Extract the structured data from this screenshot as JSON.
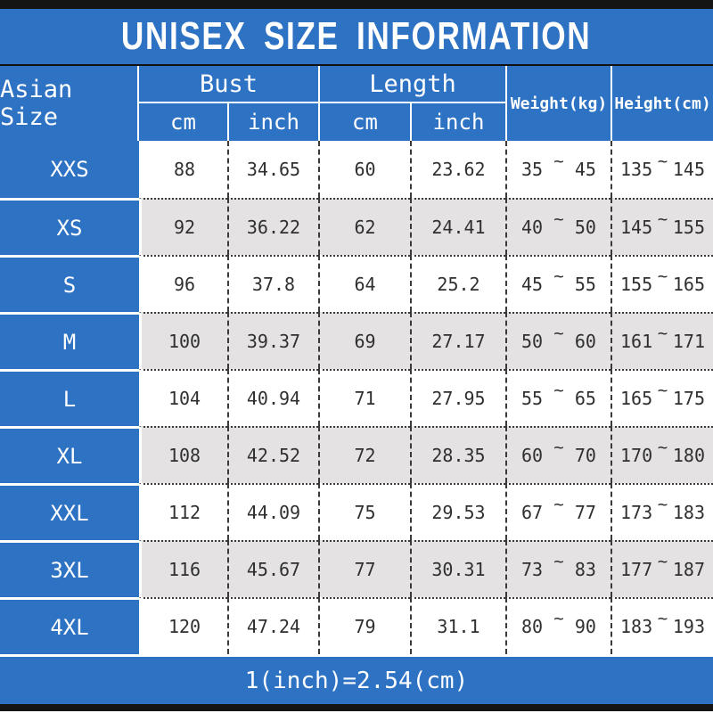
{
  "title": "UNISEX SIZE INFORMATION",
  "footer_note": "1(inch)=2.54(cm)",
  "colors": {
    "blue": "#2d72c3",
    "alt_row": "#e4e2e3",
    "bar": "#141414",
    "text": "#2f2f2f"
  },
  "table": {
    "corner_header": "Asian Size",
    "groups": [
      {
        "label": "Bust",
        "sub": [
          "cm",
          "inch"
        ]
      },
      {
        "label": "Length",
        "sub": [
          "cm",
          "inch"
        ]
      }
    ],
    "weight_header": "Weight(kg)",
    "height_header": "Height(cm)",
    "range_separator": "~",
    "rows": [
      {
        "size": "XXS",
        "bust_cm": "88",
        "bust_inch": "34.65",
        "length_cm": "60",
        "length_inch": "23.62",
        "weight_min": "35",
        "weight_max": "45",
        "height_min": "135",
        "height_max": "145"
      },
      {
        "size": "XS",
        "bust_cm": "92",
        "bust_inch": "36.22",
        "length_cm": "62",
        "length_inch": "24.41",
        "weight_min": "40",
        "weight_max": "50",
        "height_min": "145",
        "height_max": "155"
      },
      {
        "size": "S",
        "bust_cm": "96",
        "bust_inch": "37.8",
        "length_cm": "64",
        "length_inch": "25.2",
        "weight_min": "45",
        "weight_max": "55",
        "height_min": "155",
        "height_max": "165"
      },
      {
        "size": "M",
        "bust_cm": "100",
        "bust_inch": "39.37",
        "length_cm": "69",
        "length_inch": "27.17",
        "weight_min": "50",
        "weight_max": "60",
        "height_min": "161",
        "height_max": "171"
      },
      {
        "size": "L",
        "bust_cm": "104",
        "bust_inch": "40.94",
        "length_cm": "71",
        "length_inch": "27.95",
        "weight_min": "55",
        "weight_max": "65",
        "height_min": "165",
        "height_max": "175"
      },
      {
        "size": "XL",
        "bust_cm": "108",
        "bust_inch": "42.52",
        "length_cm": "72",
        "length_inch": "28.35",
        "weight_min": "60",
        "weight_max": "70",
        "height_min": "170",
        "height_max": "180"
      },
      {
        "size": "XXL",
        "bust_cm": "112",
        "bust_inch": "44.09",
        "length_cm": "75",
        "length_inch": "29.53",
        "weight_min": "67",
        "weight_max": "77",
        "height_min": "173",
        "height_max": "183"
      },
      {
        "size": "3XL",
        "bust_cm": "116",
        "bust_inch": "45.67",
        "length_cm": "77",
        "length_inch": "30.31",
        "weight_min": "73",
        "weight_max": "83",
        "height_min": "177",
        "height_max": "187"
      },
      {
        "size": "4XL",
        "bust_cm": "120",
        "bust_inch": "47.24",
        "length_cm": "79",
        "length_inch": "31.1",
        "weight_min": "80",
        "weight_max": "90",
        "height_min": "183",
        "height_max": "193"
      }
    ]
  },
  "chart_data": {
    "type": "table",
    "title": "UNISEX SIZE INFORMATION",
    "columns": [
      "Asian Size",
      "Bust cm",
      "Bust inch",
      "Length cm",
      "Length inch",
      "Weight(kg)",
      "Height(cm)"
    ],
    "rows": [
      [
        "XXS",
        88,
        34.65,
        60,
        23.62,
        "35~45",
        "135~145"
      ],
      [
        "XS",
        92,
        36.22,
        62,
        24.41,
        "40~50",
        "145~155"
      ],
      [
        "S",
        96,
        37.8,
        64,
        25.2,
        "45~55",
        "155~165"
      ],
      [
        "M",
        100,
        39.37,
        69,
        27.17,
        "50~60",
        "161~171"
      ],
      [
        "L",
        104,
        40.94,
        71,
        27.95,
        "55~65",
        "165~175"
      ],
      [
        "XL",
        108,
        42.52,
        72,
        28.35,
        "60~70",
        "170~180"
      ],
      [
        "XXL",
        112,
        44.09,
        75,
        29.53,
        "67~77",
        "173~183"
      ],
      [
        "3XL",
        116,
        45.67,
        77,
        30.31,
        "73~83",
        "177~187"
      ],
      [
        "4XL",
        120,
        47.24,
        79,
        31.1,
        "80~90",
        "183~193"
      ]
    ],
    "footnote": "1(inch)=2.54(cm)"
  }
}
